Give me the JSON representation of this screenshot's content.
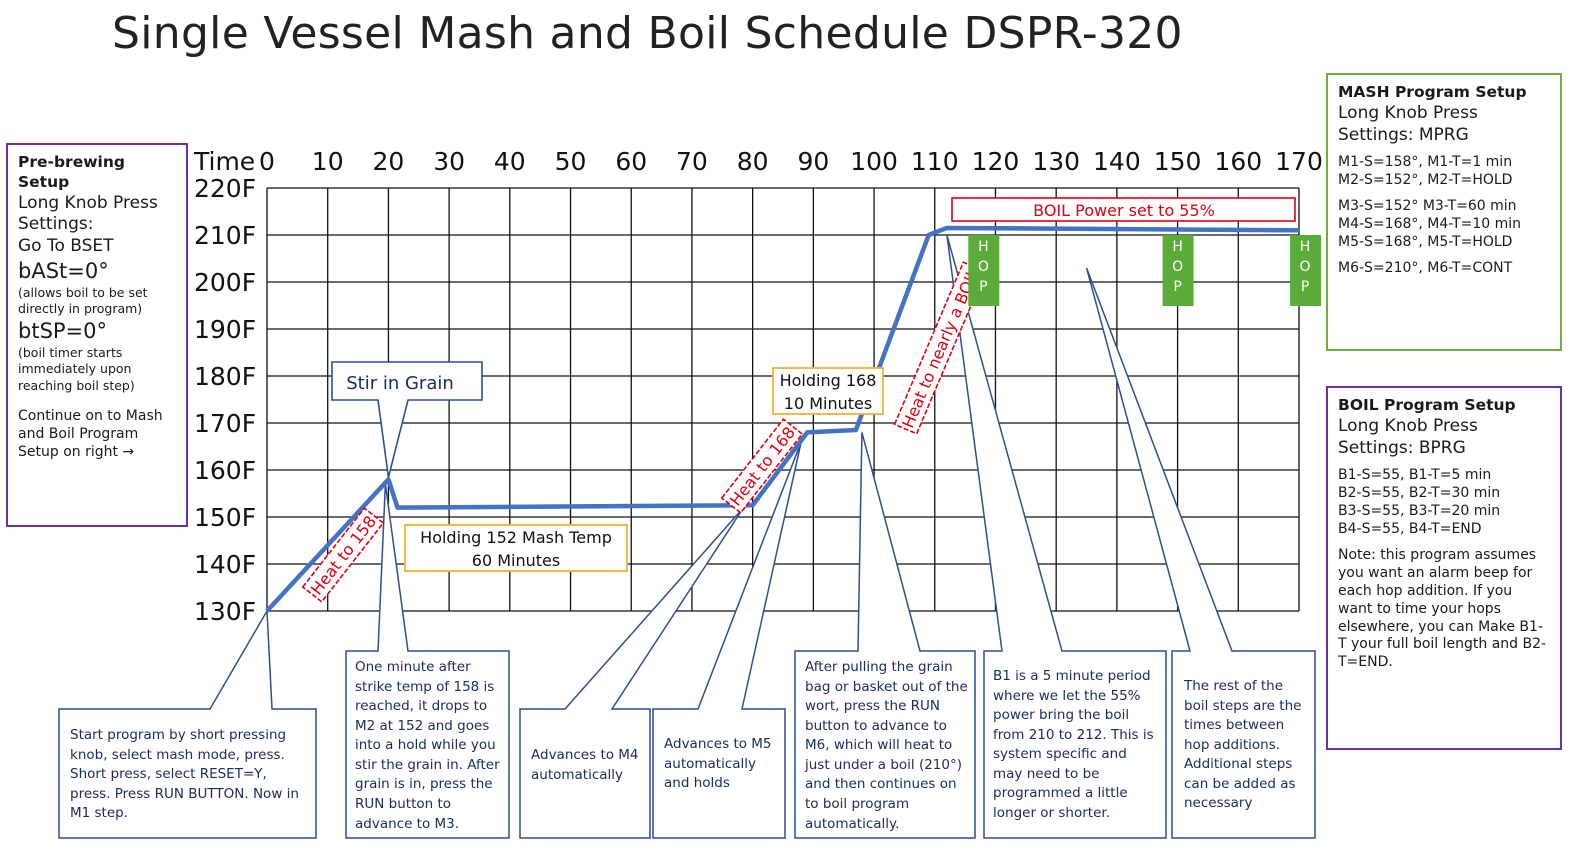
{
  "title": "Single Vessel Mash and Boil Schedule DSPR-320",
  "chart_data": {
    "type": "line",
    "time_label": "Time",
    "x_ticks": [
      0,
      10,
      20,
      30,
      40,
      50,
      60,
      70,
      80,
      90,
      100,
      110,
      120,
      130,
      140,
      150,
      160,
      170
    ],
    "y_ticks": [
      "220F",
      "210F",
      "200F",
      "190F",
      "180F",
      "170F",
      "160F",
      "150F",
      "140F",
      "130F"
    ],
    "xlim": [
      0,
      170
    ],
    "ylim": [
      130,
      220
    ],
    "series": [
      {
        "x": [
          0,
          20,
          21.5,
          80,
          89,
          97,
          109,
          112,
          170
        ],
        "y": [
          130,
          158,
          152,
          152.5,
          168,
          168.5,
          210,
          211.5,
          211
        ]
      }
    ]
  },
  "chart_labels": {
    "stir_in_grain": "Stir in Grain",
    "holding_152_line1": "Holding 152 Mash Temp",
    "holding_152_line2": "60 Minutes",
    "holding_168_line1": "Holding 168",
    "holding_168_line2": "10 Minutes",
    "heat_to_158": "Heat to 158",
    "heat_to_168": "Heat to 168",
    "heat_to_boil": "Heat to nearly a BOIL",
    "boil_power": "BOIL Power set to 55%",
    "hop_letters": [
      "H",
      "O",
      "P"
    ]
  },
  "prebrew": {
    "title": "Pre-brewing Setup",
    "line1": "Long Knob Press",
    "line2": "Settings:",
    "line3": "Go To BSET",
    "bast": "bASt=0°",
    "bast_note": "(allows boil to be set directly in program)",
    "btsp": "btSP=0°",
    "btsp_note": "(boil timer starts immediately upon reaching boil step)",
    "continue": "Continue on to Mash and Boil Program Setup on right →"
  },
  "mash": {
    "title": "MASH Program Setup",
    "line1": "Long Knob Press",
    "line2": "Settings: MPRG",
    "steps": [
      "M1-S=158°, M1-T=1 min",
      "M2-S=152°, M2-T=HOLD",
      "M3-S=152° M3-T=60 min",
      "M4-S=168°, M4-T=10 min",
      "M5-S=168°, M5-T=HOLD",
      "M6-S=210°, M6-T=CONT"
    ]
  },
  "boil": {
    "title": "BOIL Program Setup",
    "line1": "Long Knob Press",
    "line2": "Settings: BPRG",
    "steps": [
      "B1-S=55, B1-T=5 min",
      "B2-S=55, B2-T=30 min",
      "B3-S=55, B3-T=20 min",
      "B4-S=55, B4-T=END"
    ],
    "note": "Note: this program assumes you want an alarm beep for each hop addition. If you want to time your hops elsewhere, you can Make B1-T your full boil length and B2-T=END."
  },
  "callouts": {
    "start": "Start program by short pressing knob, select mash mode, press. Short press, select RESET=Y, press. Press RUN BUTTON. Now in M1 step.",
    "one_minute": "One minute after strike temp of 158 is reached, it drops to M2 at 152 and goes into a hold while you stir the grain in. After grain is in, press the RUN button to advance to M3.",
    "m4": "Advances to M4 automatically",
    "m5": "Advances to M5 automatically and holds",
    "pulling": "After pulling the grain bag or basket out of the wort, press the RUN button to advance to M6, which will heat to just under a boil (210°) and then continues on to boil program automatically.",
    "b1": "B1 is a 5 minute period where we let the 55% power bring the boil from 210 to 212. This is system specific and may need to be programmed a little longer or shorter.",
    "rest": "The rest of the boil steps are the times between hop additions. Additional steps can be added as necessary"
  },
  "colors": {
    "series": "#4472c4",
    "callout_border": "#2f4f8f",
    "red": "#e0000f",
    "hop": "#5aab3a",
    "purple": "#7030a0",
    "green": "#70ad47",
    "orange": "#f2b233"
  }
}
